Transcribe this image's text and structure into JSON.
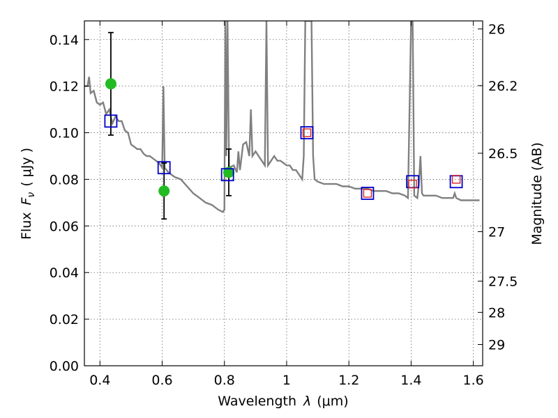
{
  "chart_data": {
    "type": "line+scatter",
    "xlabel_prefix": "Wavelength",
    "xlabel_symbol": "λ",
    "xlabel_unit": "(μm)",
    "ylabel_prefix": "Flux",
    "ylabel_symbol": "F",
    "ylabel_sub": "ν",
    "ylabel_unit": "( μJy )",
    "y2label": "Magnitude (AB)",
    "xlim": [
      0.35,
      1.63
    ],
    "ylim": [
      0.0,
      0.148
    ],
    "x_ticks": [
      0.4,
      0.6,
      0.8,
      1.0,
      1.2,
      1.4,
      1.6
    ],
    "x_tick_labels": [
      "0.4",
      "0.6",
      "0.8",
      "1",
      "1.2",
      "1.4",
      "1.6"
    ],
    "y_ticks": [
      0.0,
      0.02,
      0.04,
      0.06,
      0.08,
      0.1,
      0.12,
      0.14
    ],
    "y_tick_labels": [
      "0.00",
      "0.02",
      "0.04",
      "0.06",
      "0.08",
      "0.10",
      "0.12",
      "0.14"
    ],
    "y2_ticks": [
      26,
      26.2,
      26.5,
      27,
      27.5,
      28,
      29
    ],
    "y2_tick_labels": [
      "26",
      "26.2",
      "26.5",
      "27",
      "27.5",
      "28",
      "29"
    ],
    "grid": true,
    "sed_model": {
      "color": "#808080",
      "points": [
        [
          0.35,
          0.12
        ],
        [
          0.36,
          0.12
        ],
        [
          0.365,
          0.124
        ],
        [
          0.37,
          0.117
        ],
        [
          0.38,
          0.118
        ],
        [
          0.39,
          0.113
        ],
        [
          0.4,
          0.112
        ],
        [
          0.41,
          0.113
        ],
        [
          0.42,
          0.108
        ],
        [
          0.43,
          0.11
        ],
        [
          0.44,
          0.104
        ],
        [
          0.45,
          0.107
        ],
        [
          0.46,
          0.105
        ],
        [
          0.47,
          0.105
        ],
        [
          0.48,
          0.101
        ],
        [
          0.49,
          0.1
        ],
        [
          0.5,
          0.095
        ],
        [
          0.51,
          0.094
        ],
        [
          0.52,
          0.093
        ],
        [
          0.53,
          0.093
        ],
        [
          0.54,
          0.091
        ],
        [
          0.55,
          0.09
        ],
        [
          0.56,
          0.09
        ],
        [
          0.57,
          0.089
        ],
        [
          0.58,
          0.088
        ],
        [
          0.59,
          0.087
        ],
        [
          0.6,
          0.085
        ],
        [
          0.604,
          0.12
        ],
        [
          0.608,
          0.085
        ],
        [
          0.62,
          0.083
        ],
        [
          0.64,
          0.081
        ],
        [
          0.66,
          0.08
        ],
        [
          0.68,
          0.077
        ],
        [
          0.7,
          0.074
        ],
        [
          0.72,
          0.072
        ],
        [
          0.74,
          0.07
        ],
        [
          0.76,
          0.069
        ],
        [
          0.78,
          0.067
        ],
        [
          0.795,
          0.066
        ],
        [
          0.8,
          0.067
        ],
        [
          0.803,
          0.148
        ],
        [
          0.806,
          0.09
        ],
        [
          0.81,
          0.148
        ],
        [
          0.815,
          0.085
        ],
        [
          0.83,
          0.086
        ],
        [
          0.84,
          0.083
        ],
        [
          0.845,
          0.092
        ],
        [
          0.85,
          0.084
        ],
        [
          0.86,
          0.095
        ],
        [
          0.87,
          0.096
        ],
        [
          0.88,
          0.09
        ],
        [
          0.885,
          0.11
        ],
        [
          0.89,
          0.09
        ],
        [
          0.9,
          0.092
        ],
        [
          0.91,
          0.09
        ],
        [
          0.92,
          0.088
        ],
        [
          0.93,
          0.086
        ],
        [
          0.935,
          0.148
        ],
        [
          0.94,
          0.086
        ],
        [
          0.95,
          0.088
        ],
        [
          0.96,
          0.09
        ],
        [
          0.97,
          0.088
        ],
        [
          0.98,
          0.088
        ],
        [
          0.99,
          0.087
        ],
        [
          1.0,
          0.086
        ],
        [
          1.01,
          0.086
        ],
        [
          1.02,
          0.084
        ],
        [
          1.03,
          0.084
        ],
        [
          1.04,
          0.082
        ],
        [
          1.05,
          0.08
        ],
        [
          1.055,
          0.09
        ],
        [
          1.06,
          0.148
        ],
        [
          1.08,
          0.148
        ],
        [
          1.085,
          0.09
        ],
        [
          1.09,
          0.08
        ],
        [
          1.1,
          0.079
        ],
        [
          1.12,
          0.078
        ],
        [
          1.14,
          0.078
        ],
        [
          1.16,
          0.078
        ],
        [
          1.18,
          0.077
        ],
        [
          1.2,
          0.077
        ],
        [
          1.22,
          0.076
        ],
        [
          1.24,
          0.076
        ],
        [
          1.26,
          0.076
        ],
        [
          1.28,
          0.075
        ],
        [
          1.3,
          0.075
        ],
        [
          1.32,
          0.075
        ],
        [
          1.34,
          0.074
        ],
        [
          1.36,
          0.074
        ],
        [
          1.38,
          0.073
        ],
        [
          1.39,
          0.072
        ],
        [
          1.4,
          0.148
        ],
        [
          1.405,
          0.148
        ],
        [
          1.41,
          0.073
        ],
        [
          1.42,
          0.072
        ],
        [
          1.425,
          0.078
        ],
        [
          1.43,
          0.09
        ],
        [
          1.435,
          0.074
        ],
        [
          1.44,
          0.073
        ],
        [
          1.46,
          0.073
        ],
        [
          1.48,
          0.073
        ],
        [
          1.5,
          0.072
        ],
        [
          1.52,
          0.072
        ],
        [
          1.535,
          0.072
        ],
        [
          1.54,
          0.074
        ],
        [
          1.545,
          0.072
        ],
        [
          1.56,
          0.071
        ],
        [
          1.58,
          0.071
        ],
        [
          1.6,
          0.071
        ],
        [
          1.62,
          0.071
        ]
      ]
    },
    "observed": {
      "color": "#22bb22",
      "points": [
        {
          "x": 0.435,
          "y": 0.121,
          "err": 0.022
        },
        {
          "x": 0.606,
          "y": 0.075,
          "err": 0.012
        },
        {
          "x": 0.814,
          "y": 0.083,
          "err": 0.01
        }
      ]
    },
    "model_photometry": {
      "color": "#0000cc",
      "points": [
        [
          0.435,
          0.105
        ],
        [
          0.606,
          0.085
        ],
        [
          0.81,
          0.082
        ],
        [
          1.065,
          0.1
        ],
        [
          1.26,
          0.074
        ],
        [
          1.405,
          0.079
        ],
        [
          1.545,
          0.079
        ]
      ]
    },
    "model_photometry_inner": {
      "color": "#dd2222",
      "points": [
        [
          1.065,
          0.1
        ],
        [
          1.26,
          0.074
        ],
        [
          1.405,
          0.078
        ],
        [
          1.545,
          0.08
        ]
      ]
    }
  }
}
